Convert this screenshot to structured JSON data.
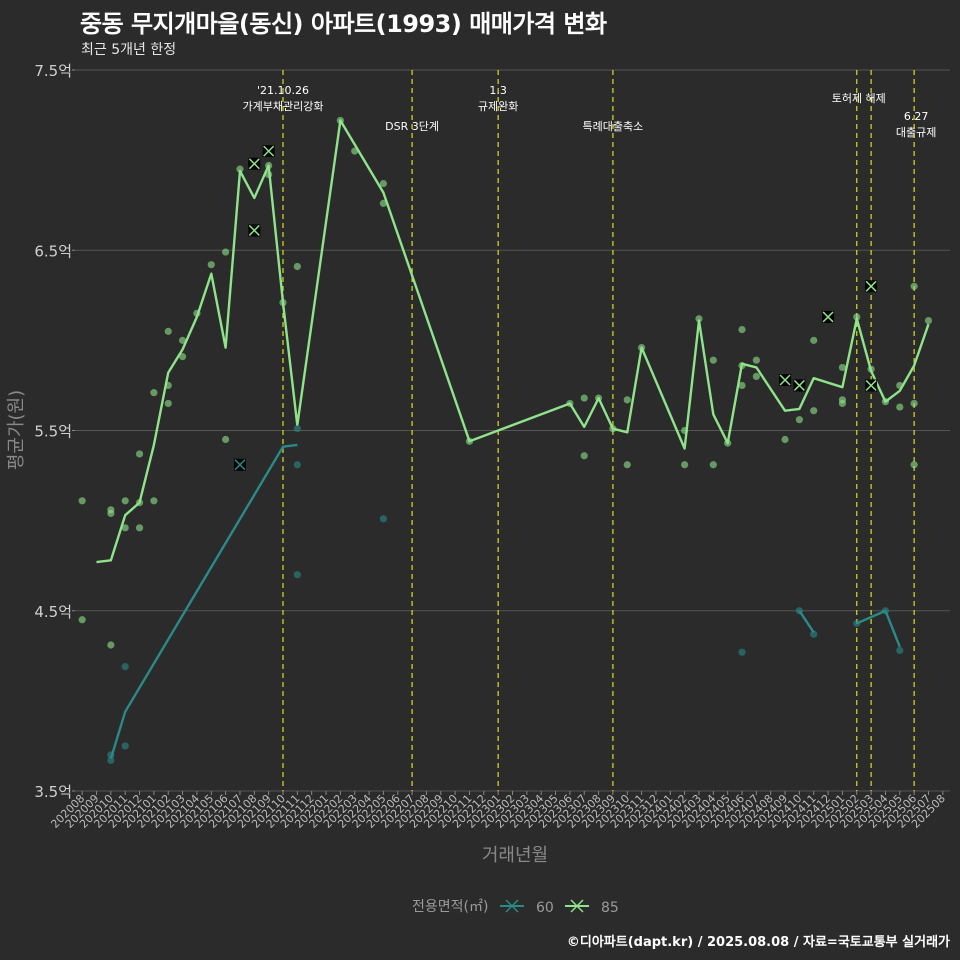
{
  "header": {
    "title": "중동 무지개마을(동신) 아파트(1993) 매매가격 변화",
    "subtitle": "최근 5개년 한정"
  },
  "footer": {
    "credit": "©디아파트(dapt.kr) / 2025.08.08 / 자료=국토교통부 실거래가"
  },
  "legend": {
    "title": "전용면적(㎡)",
    "items": [
      {
        "label": "60",
        "color": "#2a8a87"
      },
      {
        "label": "85",
        "color": "#8fe38a"
      }
    ]
  },
  "colors": {
    "background": "#2b2b2b",
    "gridline": "#555555",
    "vline": "#d9e021"
  },
  "chart_data": {
    "type": "line",
    "title": "중동 무지개마을(동신) 아파트(1993) 매매가격 변화",
    "subtitle": "최근 5개년 한정",
    "xlabel": "거래년월",
    "ylabel": "평균가(원)",
    "ylim": [
      3.5,
      7.5
    ],
    "y_ticks": [
      "3.5억",
      "4.5억",
      "5.5억",
      "6.5억",
      "7.5억"
    ],
    "grid": true,
    "categories": [
      "202008",
      "202009",
      "202010",
      "202011",
      "202012",
      "202101",
      "202102",
      "202103",
      "202104",
      "202105",
      "202106",
      "202107",
      "202108",
      "202109",
      "202110",
      "202111",
      "202112",
      "202201",
      "202202",
      "202203",
      "202204",
      "202205",
      "202206",
      "202207",
      "202208",
      "202209",
      "202210",
      "202211",
      "202212",
      "202301",
      "202302",
      "202303",
      "202304",
      "202305",
      "202306",
      "202307",
      "202308",
      "202309",
      "202310",
      "202311",
      "202312",
      "202401",
      "202402",
      "202403",
      "202404",
      "202405",
      "202406",
      "202407",
      "202408",
      "202409",
      "202410",
      "202411",
      "202412",
      "202501",
      "202502",
      "202503",
      "202504",
      "202505",
      "202506",
      "202507",
      "202508"
    ],
    "series": [
      {
        "name": "60",
        "color": "#2a8a87",
        "line": [
          {
            "x": "202010",
            "y": 3.68
          },
          {
            "x": "202011",
            "y": 3.94
          },
          {
            "x": "202110",
            "y": 5.41
          },
          {
            "x": "202111",
            "y": 5.42
          },
          null,
          {
            "x": "202410",
            "y": 4.5
          },
          {
            "x": "202411",
            "y": 4.38
          },
          null,
          {
            "x": "202502",
            "y": 4.43
          },
          {
            "x": "202504",
            "y": 4.5
          },
          {
            "x": "202505",
            "y": 4.3
          }
        ],
        "points": [
          {
            "x": "202010",
            "y": 3.67
          },
          {
            "x": "202010",
            "y": 3.7
          },
          {
            "x": "202011",
            "y": 3.75
          },
          {
            "x": "202011",
            "y": 4.19
          },
          {
            "x": "202111",
            "y": 5.51
          },
          {
            "x": "202111",
            "y": 5.31
          },
          {
            "x": "202111",
            "y": 4.7
          },
          {
            "x": "202205",
            "y": 5.01
          },
          {
            "x": "202406",
            "y": 4.27
          },
          {
            "x": "202410",
            "y": 4.5
          },
          {
            "x": "202411",
            "y": 4.37
          },
          {
            "x": "202502",
            "y": 4.43
          },
          {
            "x": "202504",
            "y": 4.5
          },
          {
            "x": "202505",
            "y": 4.28
          }
        ],
        "cancelled": [
          {
            "x": "202107",
            "y": 5.31
          }
        ]
      },
      {
        "name": "85",
        "color": "#8fe38a",
        "line": [
          {
            "x": "202009",
            "y": 4.77
          },
          {
            "x": "202010",
            "y": 4.78
          },
          {
            "x": "202011",
            "y": 5.03
          },
          {
            "x": "202012",
            "y": 5.1
          },
          {
            "x": "202101",
            "y": 5.42
          },
          {
            "x": "202102",
            "y": 5.82
          },
          {
            "x": "202103",
            "y": 5.95
          },
          {
            "x": "202104",
            "y": 6.13
          },
          {
            "x": "202105",
            "y": 6.37
          },
          {
            "x": "202106",
            "y": 5.96
          },
          {
            "x": "202107",
            "y": 6.94
          },
          {
            "x": "202108",
            "y": 6.79
          },
          {
            "x": "202109",
            "y": 6.97
          },
          {
            "x": "202110",
            "y": 6.21
          },
          {
            "x": "202111",
            "y": 5.53
          },
          {
            "x": "202202",
            "y": 7.22
          },
          {
            "x": "202205",
            "y": 6.82
          },
          {
            "x": "202211",
            "y": 5.44
          },
          {
            "x": "202306",
            "y": 5.65
          },
          {
            "x": "202307",
            "y": 5.52
          },
          {
            "x": "202308",
            "y": 5.68
          },
          {
            "x": "202309",
            "y": 5.51
          },
          {
            "x": "202310",
            "y": 5.49
          },
          {
            "x": "202311",
            "y": 5.96
          },
          {
            "x": "202402",
            "y": 5.4
          },
          {
            "x": "202403",
            "y": 6.11
          },
          {
            "x": "202404",
            "y": 5.59
          },
          {
            "x": "202405",
            "y": 5.43
          },
          {
            "x": "202406",
            "y": 5.87
          },
          {
            "x": "202407",
            "y": 5.85
          },
          {
            "x": "202409",
            "y": 5.61
          },
          {
            "x": "202410",
            "y": 5.62
          },
          {
            "x": "202411",
            "y": 5.79
          },
          {
            "x": "202501",
            "y": 5.74
          },
          {
            "x": "202502",
            "y": 6.12
          },
          {
            "x": "202503",
            "y": 5.83
          },
          {
            "x": "202504",
            "y": 5.66
          },
          {
            "x": "202505",
            "y": 5.72
          },
          {
            "x": "202506",
            "y": 5.86
          },
          {
            "x": "202507",
            "y": 6.09
          }
        ],
        "points": [
          {
            "x": "202008",
            "y": 5.11
          },
          {
            "x": "202008",
            "y": 4.45
          },
          {
            "x": "202010",
            "y": 5.06
          },
          {
            "x": "202010",
            "y": 5.04
          },
          {
            "x": "202010",
            "y": 4.31
          },
          {
            "x": "202011",
            "y": 5.11
          },
          {
            "x": "202011",
            "y": 4.96
          },
          {
            "x": "202012",
            "y": 5.37
          },
          {
            "x": "202012",
            "y": 5.1
          },
          {
            "x": "202012",
            "y": 4.96
          },
          {
            "x": "202101",
            "y": 5.71
          },
          {
            "x": "202101",
            "y": 5.11
          },
          {
            "x": "202102",
            "y": 6.05
          },
          {
            "x": "202102",
            "y": 5.75
          },
          {
            "x": "202102",
            "y": 5.65
          },
          {
            "x": "202103",
            "y": 6.0
          },
          {
            "x": "202103",
            "y": 5.91
          },
          {
            "x": "202104",
            "y": 6.15
          },
          {
            "x": "202105",
            "y": 6.42
          },
          {
            "x": "202106",
            "y": 6.49
          },
          {
            "x": "202106",
            "y": 5.45
          },
          {
            "x": "202107",
            "y": 6.95
          },
          {
            "x": "202109",
            "y": 6.97
          },
          {
            "x": "202109",
            "y": 6.92
          },
          {
            "x": "202110",
            "y": 6.21
          },
          {
            "x": "202111",
            "y": 6.41
          },
          {
            "x": "202202",
            "y": 7.22
          },
          {
            "x": "202203",
            "y": 7.05
          },
          {
            "x": "202205",
            "y": 6.87
          },
          {
            "x": "202205",
            "y": 6.76
          },
          {
            "x": "202211",
            "y": 5.44
          },
          {
            "x": "202306",
            "y": 5.65
          },
          {
            "x": "202307",
            "y": 5.68
          },
          {
            "x": "202307",
            "y": 5.36
          },
          {
            "x": "202308",
            "y": 5.68
          },
          {
            "x": "202309",
            "y": 5.51
          },
          {
            "x": "202310",
            "y": 5.67
          },
          {
            "x": "202310",
            "y": 5.31
          },
          {
            "x": "202311",
            "y": 5.96
          },
          {
            "x": "202402",
            "y": 5.5
          },
          {
            "x": "202402",
            "y": 5.31
          },
          {
            "x": "202403",
            "y": 6.12
          },
          {
            "x": "202404",
            "y": 5.89
          },
          {
            "x": "202404",
            "y": 5.31
          },
          {
            "x": "202405",
            "y": 5.43
          },
          {
            "x": "202406",
            "y": 6.06
          },
          {
            "x": "202406",
            "y": 5.86
          },
          {
            "x": "202406",
            "y": 5.75
          },
          {
            "x": "202407",
            "y": 5.89
          },
          {
            "x": "202407",
            "y": 5.8
          },
          {
            "x": "202409",
            "y": 5.45
          },
          {
            "x": "202410",
            "y": 5.56
          },
          {
            "x": "202411",
            "y": 6.0
          },
          {
            "x": "202411",
            "y": 5.61
          },
          {
            "x": "202501",
            "y": 5.85
          },
          {
            "x": "202501",
            "y": 5.67
          },
          {
            "x": "202501",
            "y": 5.65
          },
          {
            "x": "202502",
            "y": 6.13
          },
          {
            "x": "202503",
            "y": 5.84
          },
          {
            "x": "202504",
            "y": 5.66
          },
          {
            "x": "202505",
            "y": 5.75
          },
          {
            "x": "202505",
            "y": 5.63
          },
          {
            "x": "202506",
            "y": 6.3
          },
          {
            "x": "202506",
            "y": 5.65
          },
          {
            "x": "202506",
            "y": 5.31
          },
          {
            "x": "202507",
            "y": 6.11
          }
        ],
        "cancelled": [
          {
            "x": "202108",
            "y": 6.98
          },
          {
            "x": "202108",
            "y": 6.61
          },
          {
            "x": "202109",
            "y": 7.05
          },
          {
            "x": "202412",
            "y": 6.13
          },
          {
            "x": "202409",
            "y": 5.78
          },
          {
            "x": "202410",
            "y": 5.75
          },
          {
            "x": "202503",
            "y": 6.3
          },
          {
            "x": "202503",
            "y": 5.75
          }
        ]
      }
    ],
    "vlines": [
      {
        "x": "202110",
        "lines": [
          "'21.10.26",
          "가계부채관리강화"
        ]
      },
      {
        "x": "202207",
        "lines": [
          "DSR 3단계"
        ]
      },
      {
        "x": "202301",
        "lines": [
          "1.3",
          "규제완화"
        ]
      },
      {
        "x": "202309",
        "lines": [
          "특례대출축소"
        ]
      },
      {
        "x": "202502",
        "lines": [
          "토허제 해제"
        ]
      },
      {
        "x": "202503",
        "lines": []
      },
      {
        "x": "202506",
        "lines": [
          "6.27",
          "대출규제"
        ]
      }
    ]
  }
}
